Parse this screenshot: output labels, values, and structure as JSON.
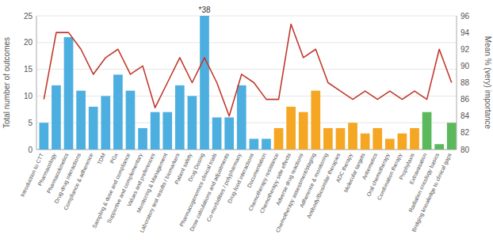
{
  "chart_data": {
    "type": "bar",
    "categories": [
      "Introduction to CTT",
      "Pharmacology",
      "Pharmacokinetics",
      "Drug-drug interactions",
      "Compliance & adherence",
      "TDM",
      "PGx",
      "Sampling & dose and compliance",
      "Supportive and complementary",
      "Values and preferences",
      "Monitoring & Management",
      "Laboratory test results / biomarkers",
      "Patient safety",
      "Drug Dosing",
      "Pharmacogenomics clinical trials",
      "Dose calculations and adjustments",
      "Co-morbidities / polypharmacy",
      "Drug-food interactions",
      "Documentation",
      "Chemotherapy resistance",
      "Chemotherapy side effects",
      "Adverse drug reactions",
      "Chemotherapy assessment/staging",
      "Adherence & monitoring",
      "Antibody/Biosimilar therapies",
      "ADC therapy",
      "Molecular targets",
      "Antiemetics",
      "Oral chemotherapy",
      "Combination therapy",
      "Prophylaxis",
      "Extravasation",
      "Radiation oncology basics",
      "Bridging knowledge to clinical gaps"
    ],
    "series": [
      {
        "type": "bar",
        "values": [
          5,
          12,
          21,
          11,
          8,
          10,
          14,
          11,
          4,
          7,
          7,
          12,
          10,
          25,
          6,
          6,
          12,
          2,
          2,
          4,
          8,
          7,
          11,
          4,
          4,
          5,
          3,
          4,
          2,
          3,
          4,
          7,
          1,
          5
        ],
        "colors": [
          "#4DAFE0",
          "#4DAFE0",
          "#4DAFE0",
          "#4DAFE0",
          "#4DAFE0",
          "#4DAFE0",
          "#4DAFE0",
          "#4DAFE0",
          "#4DAFE0",
          "#4DAFE0",
          "#4DAFE0",
          "#4DAFE0",
          "#4DAFE0",
          "#4DAFE0",
          "#4DAFE0",
          "#4DAFE0",
          "#4DAFE0",
          "#4DAFE0",
          "#4DAFE0",
          "#F5A623",
          "#F5A623",
          "#F5A623",
          "#F5A623",
          "#F5A623",
          "#F5A623",
          "#F5A623",
          "#F5A623",
          "#F5A623",
          "#F5A623",
          "#F5A623",
          "#F5A623",
          "#5CB85C",
          "#5CB85C",
          "#5CB85C"
        ]
      },
      {
        "type": "line",
        "axis": "y2",
        "color": "#C0392B",
        "values": [
          86,
          94,
          94,
          92,
          89,
          91,
          92,
          89,
          90,
          85,
          88,
          91,
          88,
          91,
          88,
          84,
          89,
          88,
          86,
          86,
          95,
          91,
          92,
          88,
          87,
          86,
          87,
          86,
          87,
          86,
          87,
          86,
          92,
          88
        ]
      }
    ],
    "ylabel": "Total number of outcomes",
    "y2label": "Mean % (very) importance",
    "ylim": [
      0,
      25
    ],
    "yticks": [
      0,
      5,
      10,
      15,
      20,
      25
    ],
    "y2lim": [
      80,
      96
    ],
    "y2ticks": [
      80,
      82,
      84,
      86,
      88,
      90,
      92,
      94,
      96
    ],
    "grid": true,
    "annotations": [
      {
        "text": "*38",
        "x": "Drug Dosing"
      }
    ]
  }
}
